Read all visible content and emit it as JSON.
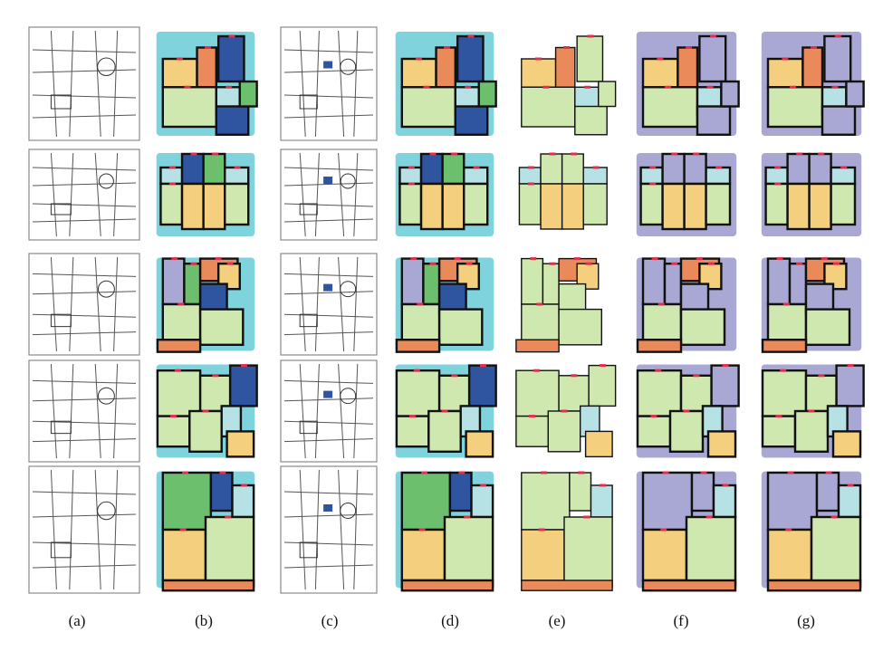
{
  "figure": {
    "column_labels": [
      "(a)",
      "(b)",
      "(c)",
      "(d)",
      "(e)",
      "(f)",
      "(g)"
    ],
    "rows": 5,
    "columns": 7
  },
  "palette": {
    "wall": "#111111",
    "living": "#cfe8b0",
    "bedroom": "#f3cf7e",
    "kitchen": "#ea8a5a",
    "bath": "#b6e2e6",
    "storage": "#2f55a0",
    "balcony": "#a9a8d4",
    "green": "#6cbf6c",
    "outline": "#7fd3dc",
    "door": "#e03050",
    "pink": "#f4c6d1",
    "sketch": "#8a8a8a"
  }
}
